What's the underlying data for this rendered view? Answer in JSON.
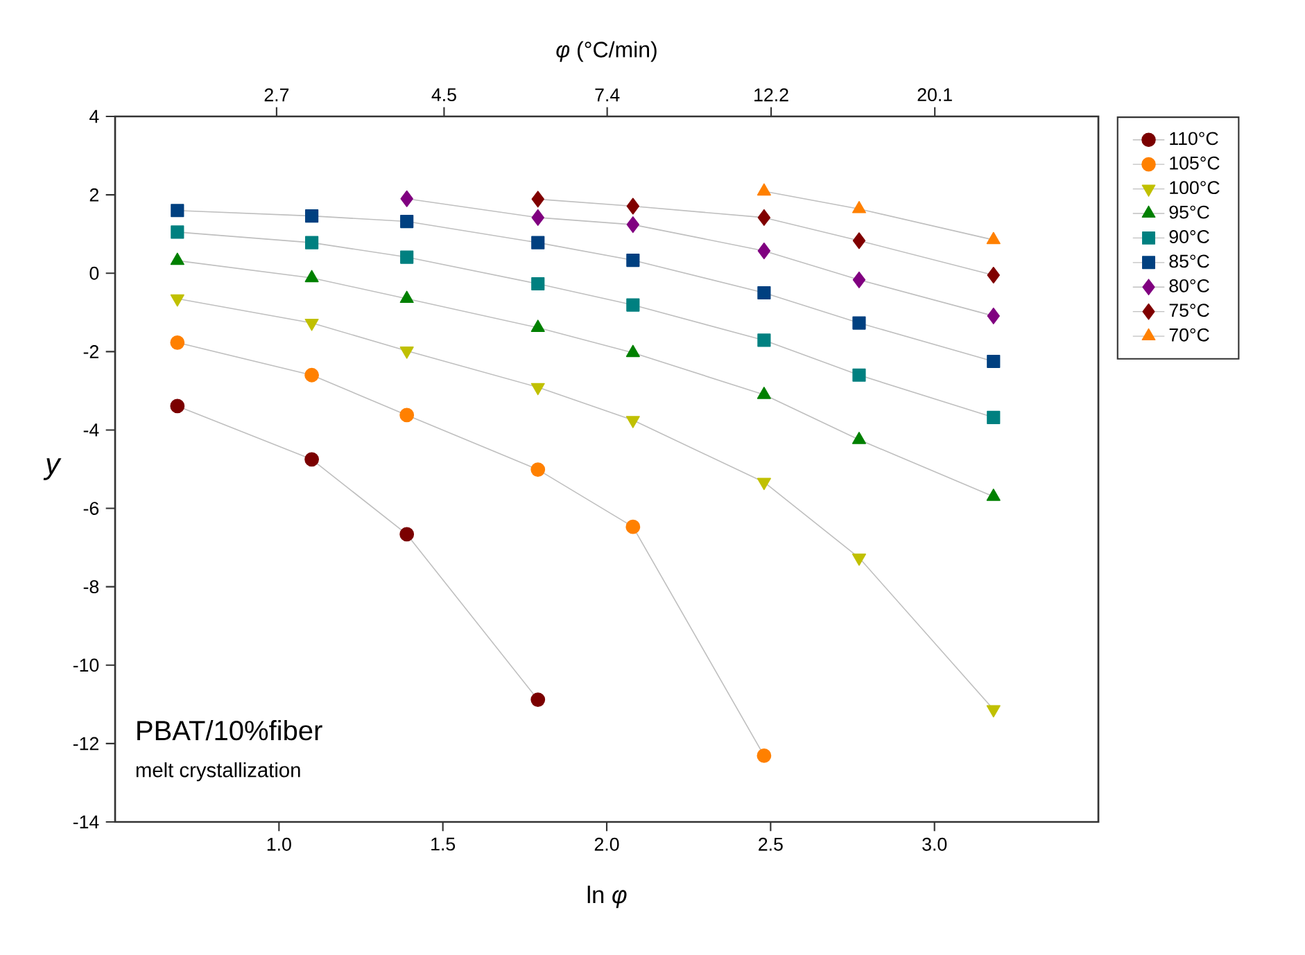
{
  "chart_data": {
    "type": "line",
    "xlabel": "ln *φ*",
    "ylabel": "y",
    "x2label": "*φ* (°C/min)",
    "xlim": [
      0.5,
      3.5
    ],
    "ylim": [
      -14,
      4
    ],
    "xticks": [
      {
        "value": 1.0,
        "label": "1.0"
      },
      {
        "value": 1.5,
        "label": "1.5"
      },
      {
        "value": 2.0,
        "label": "2.0"
      },
      {
        "value": 2.5,
        "label": "2.5"
      },
      {
        "value": 3.0,
        "label": "3.0"
      }
    ],
    "yticks": [
      -14,
      -12,
      -10,
      -8,
      -6,
      -4,
      -2,
      0,
      2,
      4
    ],
    "x2lim": [
      1.65,
      33.1
    ],
    "log": "x2",
    "x2ticks": [
      2.7,
      4.5,
      7.4,
      12.2,
      20.1
    ],
    "grid": false,
    "legend": "right",
    "line_style": "solid",
    "annotations": [
      "PBAT/10%fiber",
      "melt crystallization"
    ],
    "x": [
      0.69,
      1.1,
      1.39,
      1.79,
      2.08,
      2.48,
      2.77,
      3.18
    ],
    "series": [
      {
        "name": "110°C",
        "color": "#7b0000",
        "marker": "circle",
        "values": [
          -3.39,
          -4.75,
          -6.66,
          -10.88,
          null,
          null,
          null,
          null
        ]
      },
      {
        "name": "105°C",
        "color": "#ff8000",
        "marker": "circle",
        "values": [
          -1.77,
          -2.6,
          -3.62,
          -5.01,
          -6.47,
          -12.31,
          null,
          null
        ]
      },
      {
        "name": "100°C",
        "color": "#c0c000",
        "marker": "triangle-down",
        "values": [
          -0.65,
          -1.27,
          -1.98,
          -2.91,
          -3.75,
          -5.33,
          -7.26,
          -11.13
        ]
      },
      {
        "name": "95°C",
        "color": "#008000",
        "marker": "triangle",
        "values": [
          0.32,
          -0.12,
          -0.65,
          -1.39,
          -2.03,
          -3.1,
          -4.25,
          -5.7
        ]
      },
      {
        "name": "90°C",
        "color": "#008080",
        "marker": "square",
        "values": [
          1.05,
          0.78,
          0.41,
          -0.27,
          -0.81,
          -1.71,
          -2.6,
          -3.68
        ]
      },
      {
        "name": "85°C",
        "color": "#004080",
        "marker": "square",
        "values": [
          1.6,
          1.46,
          1.32,
          0.78,
          0.33,
          -0.5,
          -1.27,
          -2.25
        ]
      },
      {
        "name": "80°C",
        "color": "#800080",
        "marker": "diamond",
        "values": [
          null,
          null,
          1.9,
          1.42,
          1.24,
          0.57,
          -0.17,
          -1.09
        ]
      },
      {
        "name": "75°C",
        "color": "#800000",
        "marker": "diamond",
        "values": [
          null,
          null,
          null,
          1.89,
          1.71,
          1.42,
          0.83,
          -0.05
        ]
      },
      {
        "name": "70°C",
        "color": "#ff8000",
        "marker": "triangle",
        "values": [
          null,
          null,
          null,
          null,
          null,
          2.09,
          1.64,
          0.85
        ]
      }
    ]
  }
}
